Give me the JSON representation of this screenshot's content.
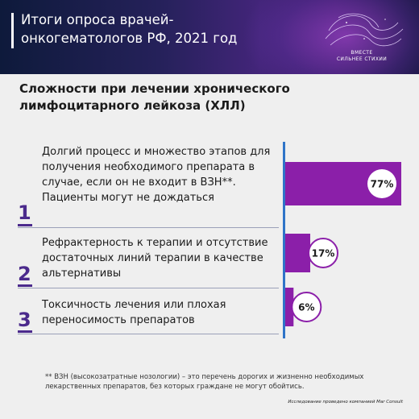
{
  "header": {
    "title": "Итоги опроса врачей-\nонкогематологов РФ, 2021 год",
    "brand_line1": "ВМЕСТЕ",
    "brand_line2": "СИЛЬНЕЕ СТИХИИ"
  },
  "section_title": "Сложности при лечении хронического\nлимфоцитарного лейкоза (ХЛЛ)",
  "items": [
    {
      "num": "1",
      "text": "Долгий процесс и множество этапов для получения необходимого препарата в случае, если он не входит в ВЗН**. Пациенты могут не дождаться"
    },
    {
      "num": "2",
      "text": "Рефрактерность к терапии и отсутствие достаточных линий терапии в качестве альтернативы"
    },
    {
      "num": "3",
      "text": "Токсичность лечения или плохая переносимость препаратов"
    }
  ],
  "chart_data": {
    "type": "bar",
    "orientation": "horizontal",
    "categories": [
      "1",
      "2",
      "3"
    ],
    "values": [
      77,
      17,
      6
    ],
    "value_labels": [
      "77%",
      "17%",
      "6%"
    ],
    "unit": "%",
    "xlim": [
      0,
      100
    ]
  },
  "colors": {
    "bar": "#8b1fa9",
    "axis": "#2f74c8",
    "label_border": "#8b1fa9",
    "number": "#4b2a8c"
  },
  "footnote": "** ВЗН (высокозатратные нозологии) – это перечень дорогих и жизненно необходимых лекарственных препаратов, без которых граждане не могут обойтись.",
  "source": "Исследование проведено компанией Mar Consult"
}
